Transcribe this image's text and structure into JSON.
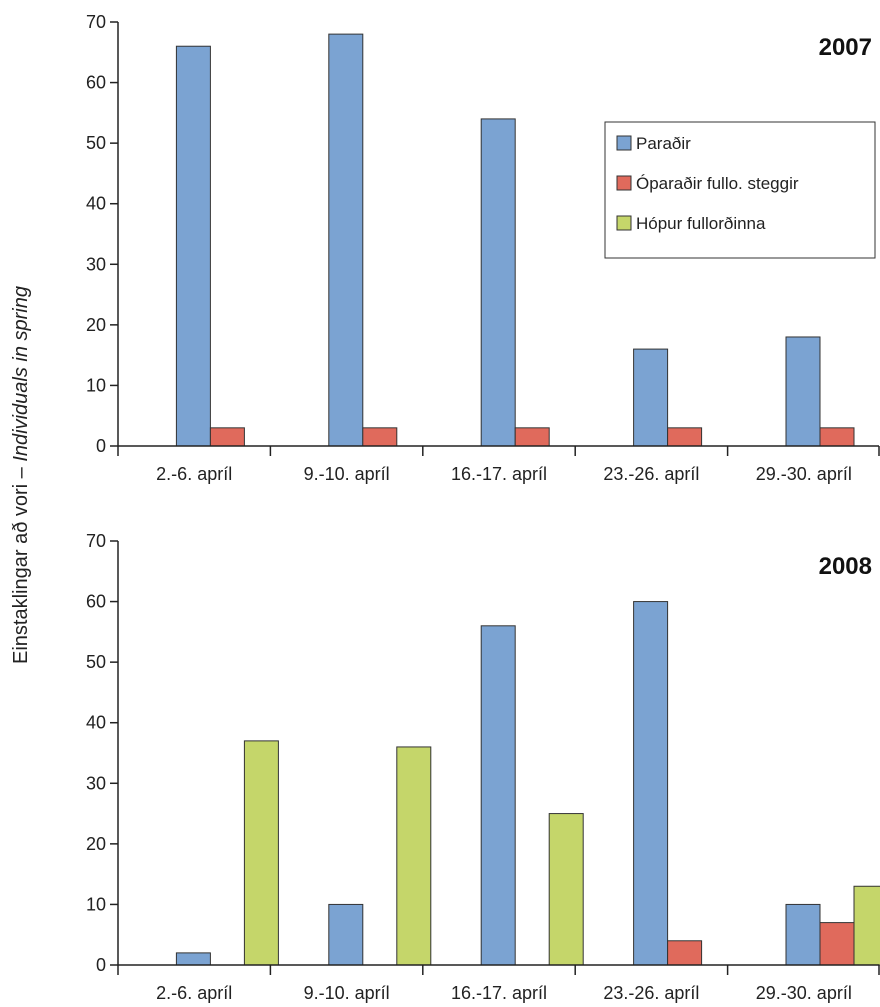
{
  "ylabel_main": "Einstaklingar að vori – ",
  "ylabel_italic": "Individuals in spring",
  "legend": [
    {
      "name": "Paraðir",
      "color": "#7ba3d2"
    },
    {
      "name": "Óparaðir fullo. steggir",
      "color": "#e06a5c"
    },
    {
      "name": "Hópur fullorðinna",
      "color": "#c5d66a"
    }
  ],
  "chart_data": [
    {
      "type": "bar",
      "title": "2007",
      "categories": [
        "2.-6. apríl",
        "9.-10. apríl",
        "16.-17. apríl",
        "23.-26. apríl",
        "29.-30. apríl"
      ],
      "series": [
        {
          "name": "Paraðir",
          "values": [
            66,
            68,
            54,
            16,
            18
          ]
        },
        {
          "name": "Óparaðir fullo. steggir",
          "values": [
            3,
            3,
            3,
            3,
            3
          ]
        },
        {
          "name": "Hópur fullorðinna",
          "values": [
            0,
            0,
            0,
            0,
            0
          ]
        }
      ],
      "ylim": [
        0,
        70
      ],
      "yticks": [
        0,
        10,
        20,
        30,
        40,
        50,
        60,
        70
      ],
      "legend_placement": "top-right"
    },
    {
      "type": "bar",
      "title": "2008",
      "categories": [
        "2.-6. apríl",
        "9.-10. apríl",
        "16.-17. apríl",
        "23.-26. apríl",
        "29.-30. apríl"
      ],
      "series": [
        {
          "name": "Paraðir",
          "values": [
            2,
            10,
            56,
            60,
            10
          ]
        },
        {
          "name": "Óparaðir fullo. steggir",
          "values": [
            0,
            0,
            0,
            4,
            7
          ]
        },
        {
          "name": "Hópur fullorðinna",
          "values": [
            37,
            36,
            25,
            0,
            13
          ]
        }
      ],
      "ylim": [
        0,
        70
      ],
      "yticks": [
        0,
        10,
        20,
        30,
        40,
        50,
        60,
        70
      ]
    }
  ]
}
